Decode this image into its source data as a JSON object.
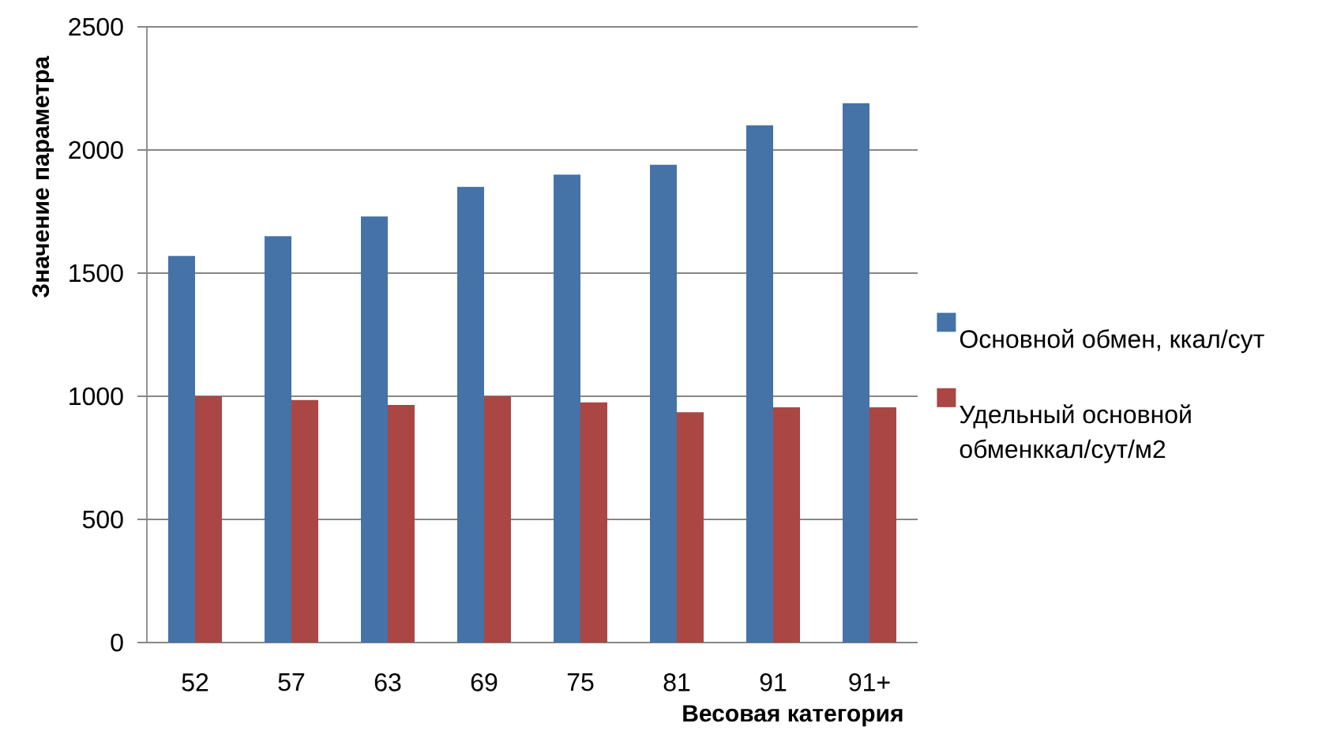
{
  "chart_data": {
    "type": "bar",
    "categories": [
      "52",
      "57",
      "63",
      "69",
      "75",
      "81",
      "91",
      "91+"
    ],
    "series": [
      {
        "name": "Основной обмен, ккал/сут",
        "color": "#4572a7",
        "values": [
          1570,
          1650,
          1730,
          1850,
          1900,
          1940,
          2100,
          2190
        ]
      },
      {
        "name": "Удельный основной обменккал/сут/м2",
        "color": "#aa4643",
        "values": [
          1000,
          985,
          965,
          1000,
          975,
          935,
          955,
          955
        ]
      }
    ],
    "xlabel": "Весовая категория",
    "ylabel": "Значение параметра",
    "ylim": [
      0,
      2500
    ],
    "yticks": [
      0,
      500,
      1000,
      1500,
      2000,
      2500
    ],
    "grid": "y",
    "legend": "right"
  }
}
